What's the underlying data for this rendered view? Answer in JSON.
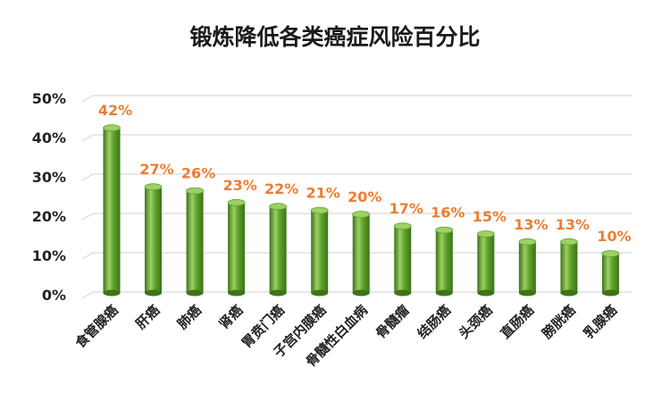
{
  "chart_data": {
    "type": "bar",
    "title": "锻炼降低各类癌症风险百分比",
    "xlabel": "",
    "ylabel": "",
    "categories": [
      "食管腺癌",
      "肝癌",
      "肺癌",
      "肾癌",
      "胃贲门癌",
      "子宫内膜癌",
      "骨髓性白血病",
      "骨髓瘤",
      "结肠癌",
      "头颈癌",
      "直肠癌",
      "膀胱癌",
      "乳腺癌"
    ],
    "values": [
      42,
      27,
      26,
      23,
      22,
      21,
      20,
      17,
      16,
      15,
      13,
      13,
      10
    ],
    "data_labels": [
      "42%",
      "27%",
      "26%",
      "23%",
      "22%",
      "21%",
      "20%",
      "17%",
      "16%",
      "15%",
      "13%",
      "13%",
      "10%"
    ],
    "ylim": [
      0,
      50
    ],
    "yticks": [
      0,
      10,
      20,
      30,
      40,
      50
    ],
    "ytick_labels": [
      "0%",
      "10%",
      "20%",
      "30%",
      "40%",
      "50%"
    ],
    "grid": true,
    "legend": "none",
    "bar_color": "#5fa32c",
    "bar_color_dark": "#3c7418",
    "bar_color_light": "#9ed064",
    "label_color": "#ed7d31",
    "grid_color": "#d0d0d0"
  }
}
